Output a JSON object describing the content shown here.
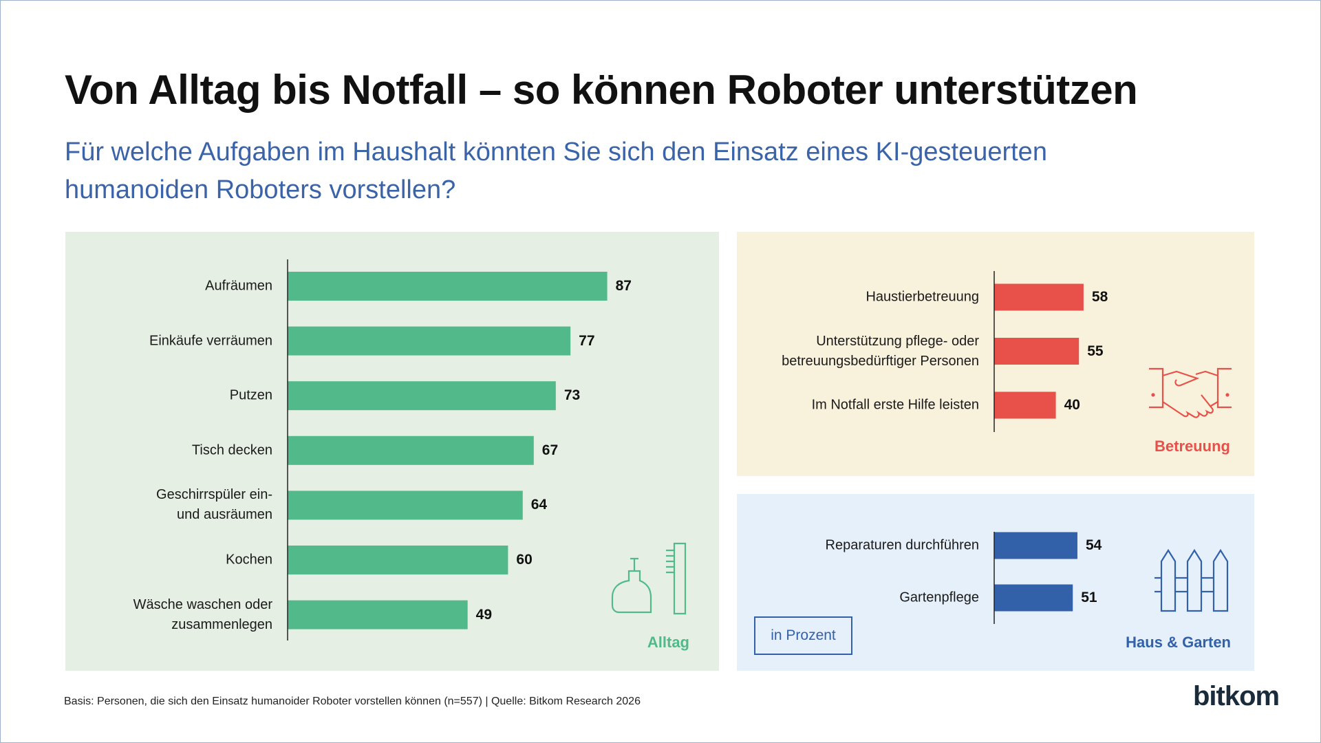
{
  "title": "Von Alltag bis Notfall – so können Roboter unterstützen",
  "subtitle": "Für welche Aufgaben im Haushalt könnten Sie sich den Einsatz eines KI-gesteuerten\nhumanoiden Roboters vorstellen?",
  "unit_note": "in Prozent",
  "source": "Basis: Personen, die sich den Einsatz humanoider Roboter vorstellen können (n=557) | Quelle: Bitkom Research 2026",
  "logo": "bitkom",
  "chart_data": [
    {
      "type": "bar",
      "orientation": "horizontal",
      "title": "Alltag",
      "color": "#52b98a",
      "categories": [
        "Aufräumen",
        "Einkäufe verräumen",
        "Putzen",
        "Tisch decken",
        "Geschirrspüler ein-\nund ausräumen",
        "Kochen",
        "Wäsche waschen oder\nzusammenlegen"
      ],
      "values": [
        87,
        77,
        73,
        67,
        64,
        60,
        49
      ],
      "xlim": [
        0,
        100
      ]
    },
    {
      "type": "bar",
      "orientation": "horizontal",
      "title": "Betreuung",
      "color": "#e8504a",
      "categories": [
        "Haustierbetreuung",
        "Unterstützung pflege- oder\nbetreuungsbedürftiger Personen",
        "Im Notfall erste Hilfe leisten"
      ],
      "values": [
        58,
        55,
        40
      ],
      "xlim": [
        0,
        100
      ]
    },
    {
      "type": "bar",
      "orientation": "horizontal",
      "title": "Haus & Garten",
      "color": "#3260a9",
      "categories": [
        "Reparaturen durchführen",
        "Gartenpflege"
      ],
      "values": [
        54,
        51
      ],
      "xlim": [
        0,
        100
      ]
    }
  ]
}
